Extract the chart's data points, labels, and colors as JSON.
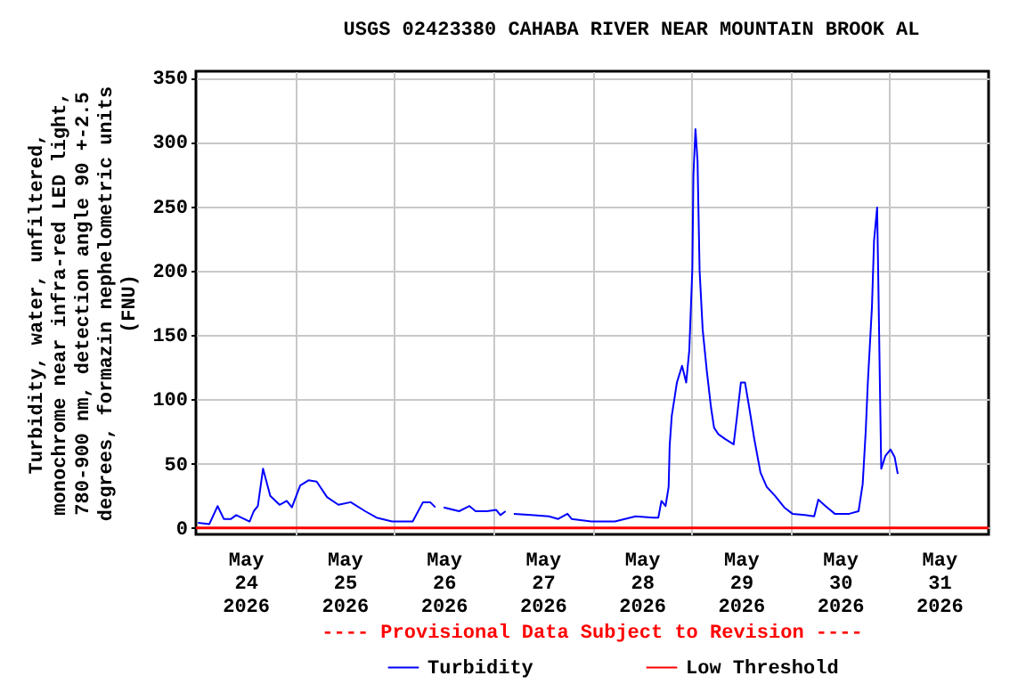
{
  "chart_data": {
    "type": "line",
    "title": "USGS 02423380 CAHABA RIVER NEAR MOUNTAIN BROOK AL",
    "ylabel": "Turbidity, water, unfiltered,\nmonochrome near infra-red LED light,\n780-900 nm, detection angle 90 +-2.5\ndegrees, formazin nephelometric units\n(FNU)",
    "annotations": [
      "---- Provisional Data Subject to Revision ----"
    ],
    "x": [
      "2026-05-24T00:30",
      "2026-05-24T03:15",
      "2026-05-24T05:15",
      "2026-05-24T06:45",
      "2026-05-24T08:30",
      "2026-05-24T09:45",
      "2026-05-24T13:00",
      "2026-05-24T14:00",
      "2026-05-24T15:00",
      "2026-05-24T16:15",
      "2026-05-24T18:00",
      "2026-05-24T20:15",
      "2026-05-24T22:00",
      "2026-05-24T23:15",
      "2026-05-25T01:15",
      "2026-05-25T03:15",
      "2026-05-25T05:15",
      "2026-05-25T07:45",
      "2026-05-25T10:30",
      "2026-05-25T13:30",
      "2026-05-25T17:00",
      "2026-05-25T19:45",
      "2026-05-25T23:30",
      "2026-05-26T04:30",
      "2026-05-26T07:00",
      "2026-05-26T08:45",
      "2026-05-26T10:00",
      "2026-05-26T11:00",
      "2026-05-26T12:00",
      "2026-05-26T15:45",
      "2026-05-26T18:15",
      "2026-05-26T19:45",
      "2026-05-26T22:30",
      "2026-05-27T00:45",
      "2026-05-27T01:45",
      "2026-05-27T03:00",
      "2026-05-27T04:00",
      "2026-05-27T05:00",
      "2026-05-27T09:15",
      "2026-05-27T13:30",
      "2026-05-27T15:45",
      "2026-05-27T18:00",
      "2026-05-27T19:00",
      "2026-05-27T23:45",
      "2026-05-28T05:30",
      "2026-05-28T10:30",
      "2026-05-28T14:45",
      "2026-05-28T16:00",
      "2026-05-28T16:45",
      "2026-05-28T17:45",
      "2026-05-28T18:30",
      "2026-05-28T18:45",
      "2026-05-28T19:15",
      "2026-05-28T20:30",
      "2026-05-28T21:45",
      "2026-05-28T22:45",
      "2026-05-28T23:30",
      "2026-05-29T00:15",
      "2026-05-29T00:30",
      "2026-05-29T01:00",
      "2026-05-29T01:30",
      "2026-05-29T02:00",
      "2026-05-29T02:45",
      "2026-05-29T03:45",
      "2026-05-29T04:45",
      "2026-05-29T05:30",
      "2026-05-29T06:30",
      "2026-05-29T08:15",
      "2026-05-29T10:15",
      "2026-05-29T11:00",
      "2026-05-29T12:00",
      "2026-05-29T13:00",
      "2026-05-29T14:00",
      "2026-05-29T15:15",
      "2026-05-29T16:45",
      "2026-05-29T18:15",
      "2026-05-29T20:15",
      "2026-05-29T22:30",
      "2026-05-30T00:30",
      "2026-05-30T03:30",
      "2026-05-30T05:45",
      "2026-05-30T06:45",
      "2026-05-30T08:30",
      "2026-05-30T10:45",
      "2026-05-30T14:15",
      "2026-05-30T16:30",
      "2026-05-30T17:30",
      "2026-05-30T18:15",
      "2026-05-30T18:45",
      "2026-05-30T19:45",
      "2026-05-30T20:15",
      "2026-05-30T21:00",
      "2026-05-30T21:15",
      "2026-05-30T21:45",
      "2026-05-30T22:00",
      "2026-05-30T23:00",
      "2026-05-31T00:15",
      "2026-05-31T01:15",
      "2026-05-31T02:00"
    ],
    "series": [
      {
        "name": "Turbidity",
        "color": "#0000ff",
        "values": [
          4,
          3,
          17,
          7,
          7,
          10,
          5,
          13,
          17,
          46,
          25,
          18,
          21,
          16,
          33,
          37,
          36,
          24,
          18,
          20,
          13,
          8,
          5,
          5,
          20,
          20,
          16,
          null,
          16,
          13,
          17,
          13,
          13,
          14,
          10,
          13,
          null,
          11,
          10,
          9,
          7,
          11,
          7,
          5,
          5,
          9,
          8,
          8,
          21,
          17,
          32,
          64,
          87,
          113,
          126,
          113,
          138,
          202,
          274,
          310,
          285,
          200,
          154,
          122,
          94,
          78,
          73,
          69,
          65,
          85,
          113,
          113,
          94,
          69,
          43,
          32,
          25,
          16,
          11,
          10,
          9,
          22,
          17,
          11,
          11,
          13,
          34,
          76,
          113,
          172,
          223,
          249,
          200,
          96,
          46,
          56,
          61,
          55,
          42
        ]
      }
    ],
    "ref_lines": [
      {
        "axis": "y",
        "value": 0,
        "label": "Low Threshold",
        "color": "#ff0000"
      }
    ],
    "xlim": [
      "2026-05-24T00:00",
      "2026-06-01T00:00"
    ],
    "xticks": [
      {
        "value": "2026-05-24T12:00",
        "label": "May\n24\n2026"
      },
      {
        "value": "2026-05-25T00:00",
        "label": null
      },
      {
        "value": "2026-05-25T12:00",
        "label": "May\n25\n2026"
      },
      {
        "value": "2026-05-26T00:00",
        "label": null
      },
      {
        "value": "2026-05-26T12:00",
        "label": "May\n26\n2026"
      },
      {
        "value": "2026-05-27T00:00",
        "label": null
      },
      {
        "value": "2026-05-27T12:00",
        "label": "May\n27\n2026"
      },
      {
        "value": "2026-05-28T00:00",
        "label": null
      },
      {
        "value": "2026-05-28T12:00",
        "label": "May\n28\n2026"
      },
      {
        "value": "2026-05-29T00:00",
        "label": null
      },
      {
        "value": "2026-05-29T12:00",
        "label": "May\n29\n2026"
      },
      {
        "value": "2026-05-30T00:00",
        "label": null
      },
      {
        "value": "2026-05-30T12:00",
        "label": "May\n30\n2026"
      },
      {
        "value": "2026-05-31T00:00",
        "label": null
      },
      {
        "value": "2026-05-31T12:00",
        "label": "May\n31\n2026"
      }
    ],
    "ylim": [
      -5,
      355
    ],
    "yticks": [
      0,
      50,
      100,
      150,
      200,
      250,
      300,
      350
    ],
    "grid": true,
    "legend": "bottom",
    "line_style": "solid",
    "marker": "none"
  }
}
